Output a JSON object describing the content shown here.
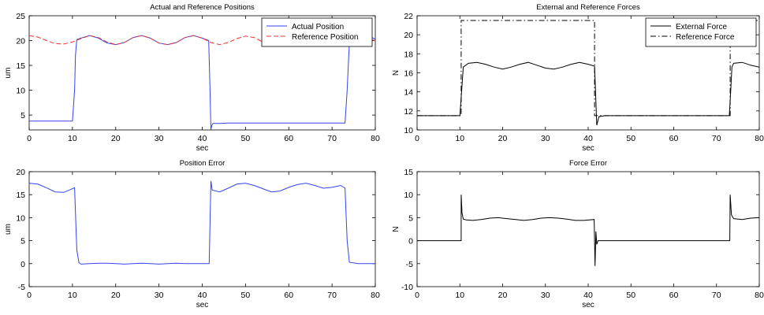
{
  "chart_data": [
    {
      "type": "line",
      "title": "Actual and Reference Positions",
      "xlabel": "sec",
      "ylabel": "um",
      "xlim": [
        0,
        80
      ],
      "ylim": [
        2,
        25
      ],
      "xticks": [
        0,
        10,
        20,
        30,
        40,
        50,
        60,
        70,
        80
      ],
      "yticks": [
        5,
        10,
        15,
        20,
        25
      ],
      "legend_position": "top-right",
      "series": [
        {
          "name": "Actual Position",
          "color": "#3344ee",
          "style": "solid",
          "x": [
            0,
            10,
            10.5,
            10.7,
            11,
            12,
            14,
            16,
            18,
            20,
            22,
            24,
            26,
            28,
            30,
            32,
            34,
            36,
            38,
            40,
            41.5,
            41.8,
            42,
            42.3,
            42.5,
            44,
            46,
            48,
            50,
            52,
            54,
            56,
            58,
            60,
            62,
            64,
            66,
            68,
            70,
            72,
            73,
            73.5,
            74,
            76,
            78,
            80
          ],
          "y": [
            3.8,
            3.8,
            10,
            17,
            20.2,
            20.5,
            21,
            20.5,
            19.5,
            19.2,
            19.6,
            20.6,
            21,
            20.5,
            19.5,
            19.2,
            19.6,
            20.6,
            21,
            20.5,
            20,
            10,
            2.1,
            3.1,
            3.3,
            3.3,
            3.4,
            3.4,
            3.4,
            3.4,
            3.4,
            3.4,
            3.4,
            3.4,
            3.4,
            3.4,
            3.4,
            3.4,
            3.4,
            3.4,
            3.4,
            10,
            19.5,
            20.5,
            21,
            20.3
          ]
        },
        {
          "name": "Reference Position",
          "color": "#ee3333",
          "style": "dashed",
          "x": [
            0,
            2,
            4,
            6,
            8,
            10,
            12,
            14,
            16,
            18,
            20,
            22,
            24,
            26,
            28,
            30,
            32,
            34,
            36,
            38,
            40,
            42,
            44,
            46,
            48,
            50,
            52,
            54,
            56,
            58,
            60,
            62,
            64,
            66,
            68,
            70,
            72,
            74,
            76,
            78,
            80
          ],
          "y": [
            21,
            20.7,
            20,
            19.4,
            19.3,
            19.7,
            20.4,
            21,
            20.6,
            19.7,
            19.2,
            19.6,
            20.6,
            21,
            20.5,
            19.5,
            19.2,
            19.6,
            20.6,
            21,
            20.5,
            19.6,
            19.2,
            19.6,
            20.4,
            20.9,
            20.6,
            19.7,
            19.2,
            19.5,
            20.4,
            20.9,
            20.7,
            19.8,
            19.2,
            19.4,
            20.3,
            20.8,
            20.9,
            20.4,
            20
          ]
        }
      ]
    },
    {
      "type": "line",
      "title": "External and Reference Forces",
      "xlabel": "sec",
      "ylabel": "N",
      "xlim": [
        0,
        80
      ],
      "ylim": [
        10,
        22
      ],
      "xticks": [
        0,
        10,
        20,
        30,
        40,
        50,
        60,
        70,
        80
      ],
      "yticks": [
        10,
        12,
        14,
        16,
        18,
        20,
        22
      ],
      "legend_position": "top-right",
      "series": [
        {
          "name": "External Force",
          "color": "#000000",
          "style": "solid",
          "x": [
            0,
            10,
            10.4,
            10.8,
            12,
            14,
            16,
            18,
            20,
            22,
            24,
            26,
            28,
            30,
            32,
            34,
            36,
            38,
            40,
            41.5,
            41.8,
            42,
            42.5,
            44,
            46,
            48,
            50,
            52,
            54,
            56,
            58,
            60,
            62,
            64,
            66,
            68,
            70,
            72,
            73,
            73.3,
            73.6,
            74,
            76,
            78,
            80
          ],
          "y": [
            11.5,
            11.5,
            14,
            16.6,
            17,
            17.1,
            16.9,
            16.6,
            16.4,
            16.6,
            16.9,
            17.1,
            16.8,
            16.5,
            16.4,
            16.6,
            16.9,
            17.1,
            16.9,
            16.7,
            13,
            10.5,
            11.4,
            11.5,
            11.5,
            11.5,
            11.5,
            11.5,
            11.5,
            11.5,
            11.5,
            11.5,
            11.5,
            11.5,
            11.5,
            11.5,
            11.5,
            11.5,
            11.5,
            14,
            16.6,
            17,
            17.1,
            16.8,
            16.6
          ]
        },
        {
          "name": "Reference Force",
          "color": "#000000",
          "style": "dashdot",
          "x": [
            0,
            10.3,
            10.3,
            41.5,
            41.5,
            73.2,
            73.2,
            80
          ],
          "y": [
            11.5,
            11.5,
            21.5,
            21.5,
            11.5,
            11.5,
            21.5,
            21.5
          ]
        }
      ]
    },
    {
      "type": "line",
      "title": "Position Error",
      "xlabel": "sec",
      "ylabel": "um",
      "xlim": [
        0,
        80
      ],
      "ylim": [
        -5,
        20
      ],
      "xticks": [
        0,
        10,
        20,
        30,
        40,
        50,
        60,
        70,
        80
      ],
      "yticks": [
        -5,
        0,
        5,
        10,
        15,
        20
      ],
      "series": [
        {
          "name": "",
          "color": "#3344ee",
          "style": "solid",
          "x": [
            0,
            2,
            4,
            6,
            8,
            10,
            10.5,
            11,
            11.5,
            12,
            14,
            16,
            18,
            20,
            22,
            24,
            26,
            28,
            30,
            32,
            34,
            36,
            38,
            40,
            41.6,
            42,
            42.3,
            44,
            46,
            48,
            50,
            52,
            54,
            56,
            58,
            60,
            62,
            64,
            66,
            68,
            70,
            72,
            73,
            73.5,
            74,
            76,
            78,
            80
          ],
          "y": [
            17.5,
            17.3,
            16.5,
            15.6,
            15.5,
            16.3,
            16.5,
            3,
            0.2,
            -0.1,
            0,
            0.1,
            0.1,
            0,
            -0.1,
            0,
            0.1,
            0,
            -0.1,
            0,
            0.1,
            0,
            0,
            0,
            0,
            18,
            16,
            15.6,
            16.4,
            17.3,
            17.5,
            17,
            16.3,
            15.6,
            15.8,
            16.6,
            17.2,
            17.5,
            17,
            16.4,
            16.6,
            17,
            16.4,
            5,
            0.3,
            0,
            0,
            0
          ]
        }
      ]
    },
    {
      "type": "line",
      "title": "Force Error",
      "xlabel": "sec",
      "ylabel": "N",
      "xlim": [
        0,
        80
      ],
      "ylim": [
        -10,
        15
      ],
      "xticks": [
        0,
        10,
        20,
        30,
        40,
        50,
        60,
        70,
        80
      ],
      "yticks": [
        -10,
        -5,
        0,
        5,
        10,
        15
      ],
      "series": [
        {
          "name": "",
          "color": "#000000",
          "style": "solid",
          "x": [
            0,
            10.3,
            10.3,
            10.5,
            10.8,
            11.5,
            13,
            15,
            17,
            19,
            21,
            23,
            25,
            27,
            29,
            31,
            33,
            35,
            37,
            39,
            41.4,
            41.6,
            41.8,
            42,
            42.3,
            44,
            50,
            60,
            70,
            73.1,
            73.2,
            73.5,
            74,
            76,
            78,
            80
          ],
          "y": [
            0,
            0,
            10,
            6,
            4.7,
            4.5,
            4.4,
            4.6,
            4.9,
            5,
            4.8,
            4.6,
            4.4,
            4.6,
            4.9,
            5,
            4.9,
            4.7,
            4.4,
            4.4,
            4.6,
            -5.5,
            2,
            -0.8,
            0,
            0,
            0,
            0,
            0,
            0,
            10,
            5.6,
            4.8,
            4.6,
            4.9,
            5
          ]
        }
      ]
    }
  ]
}
